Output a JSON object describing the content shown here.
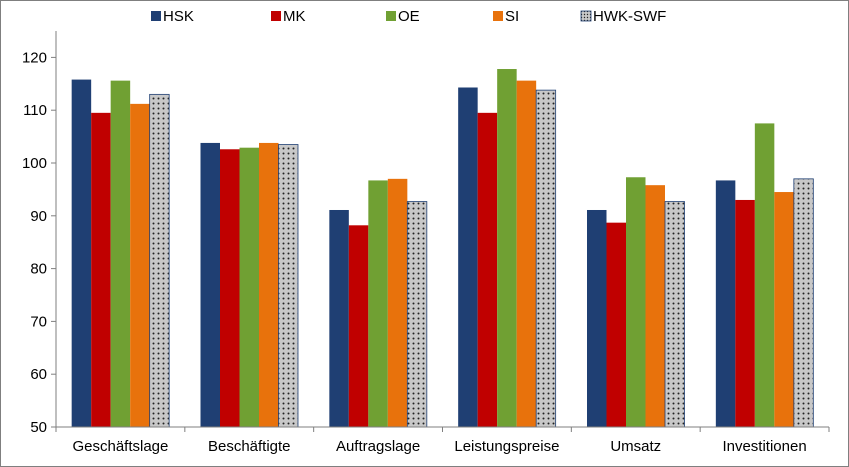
{
  "chart_data": {
    "type": "bar",
    "title": "",
    "xlabel": "",
    "ylabel": "",
    "ylim": [
      50,
      125
    ],
    "yticks": [
      50,
      60,
      70,
      80,
      90,
      100,
      110,
      120
    ],
    "grid": false,
    "legend_position": "top",
    "categories": [
      "Geschäftslage",
      "Beschäftigte",
      "Auftragslage",
      "Leistungspreise",
      "Umsatz",
      "Investitionen"
    ],
    "series": [
      {
        "name": "HSK",
        "color": "#1f3f73",
        "pattern": "solid",
        "values": [
          115.8,
          103.8,
          91.1,
          114.3,
          91.1,
          96.7
        ]
      },
      {
        "name": "MK",
        "color": "#c00000",
        "pattern": "solid",
        "values": [
          109.5,
          102.6,
          88.2,
          109.5,
          88.7,
          93.0
        ]
      },
      {
        "name": "OE",
        "color": "#70a033",
        "pattern": "solid",
        "values": [
          115.6,
          102.9,
          96.7,
          117.8,
          97.3,
          107.5
        ]
      },
      {
        "name": "SI",
        "color": "#e8720c",
        "pattern": "solid",
        "values": [
          111.2,
          103.8,
          97.0,
          115.6,
          95.8,
          94.5
        ]
      },
      {
        "name": "HWK-SWF",
        "color": "#c8c8c8",
        "pattern": "dotted",
        "values": [
          113.0,
          103.5,
          92.7,
          113.8,
          92.7,
          97.0
        ]
      }
    ]
  }
}
